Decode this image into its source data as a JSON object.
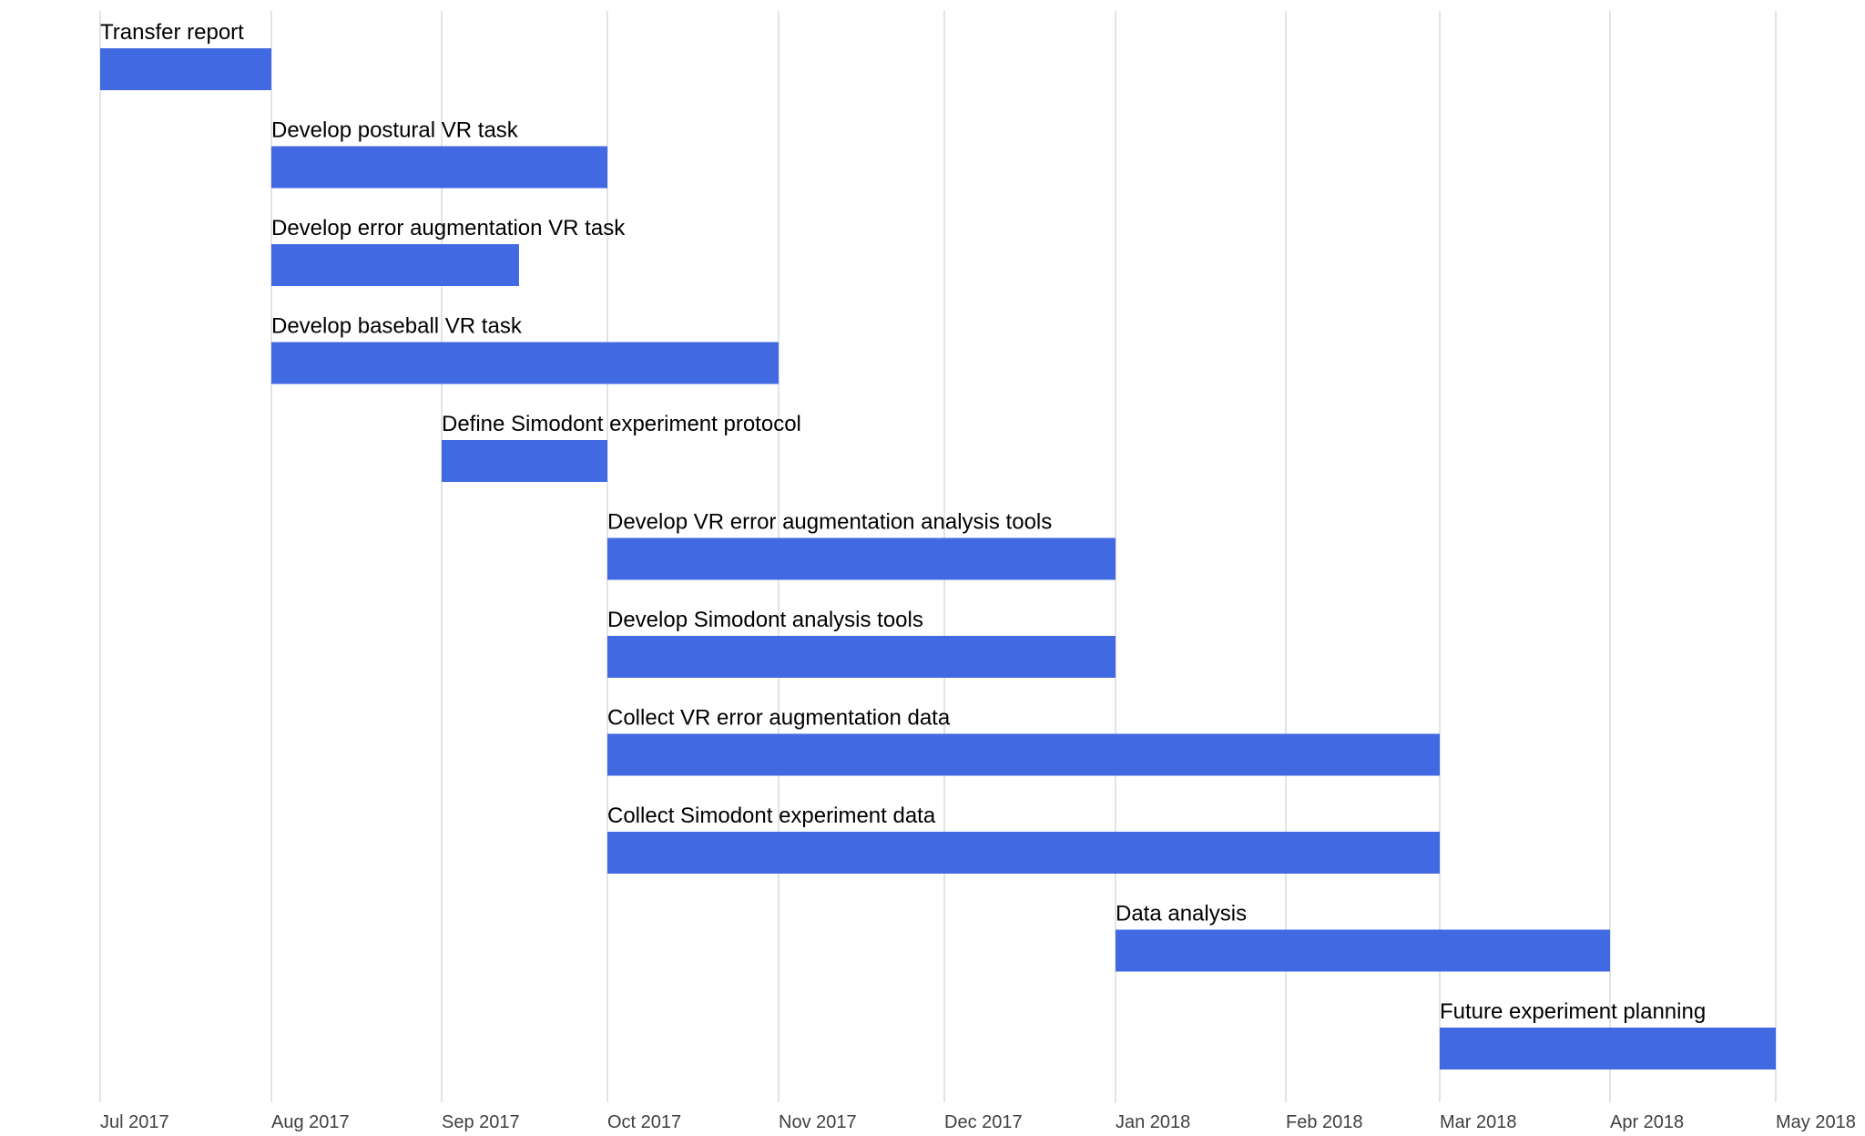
{
  "chart_data": {
    "type": "bar",
    "subtype": "gantt",
    "title": "",
    "xlabel": "",
    "ylabel": "",
    "x_axis": {
      "scale": "date",
      "range": [
        "2017-07-01",
        "2018-05-01"
      ],
      "ticks": [
        {
          "date": "2017-07-01",
          "label": "Jul 2017"
        },
        {
          "date": "2017-08-01",
          "label": "Aug 2017"
        },
        {
          "date": "2017-09-01",
          "label": "Sep 2017"
        },
        {
          "date": "2017-10-01",
          "label": "Oct 2017"
        },
        {
          "date": "2017-11-01",
          "label": "Nov 2017"
        },
        {
          "date": "2017-12-01",
          "label": "Dec 2017"
        },
        {
          "date": "2018-01-01",
          "label": "Jan 2018"
        },
        {
          "date": "2018-02-01",
          "label": "Feb 2018"
        },
        {
          "date": "2018-03-01",
          "label": "Mar 2018"
        },
        {
          "date": "2018-04-01",
          "label": "Apr 2018"
        },
        {
          "date": "2018-05-01",
          "label": "May 2018"
        }
      ]
    },
    "grid": true,
    "legend": "none",
    "bar_color": "#4169e1",
    "tasks": [
      {
        "name": "Transfer report",
        "start": "2017-07-01",
        "end": "2017-08-01"
      },
      {
        "name": "Develop postural VR task",
        "start": "2017-08-01",
        "end": "2017-10-01"
      },
      {
        "name": "Develop error augmentation VR task",
        "start": "2017-08-01",
        "end": "2017-09-15"
      },
      {
        "name": "Develop baseball VR task",
        "start": "2017-08-01",
        "end": "2017-11-01"
      },
      {
        "name": "Define Simodont experiment protocol",
        "start": "2017-09-01",
        "end": "2017-10-01"
      },
      {
        "name": "Develop VR error augmentation analysis tools",
        "start": "2017-10-01",
        "end": "2018-01-01"
      },
      {
        "name": "Develop Simodont analysis tools",
        "start": "2017-10-01",
        "end": "2018-01-01"
      },
      {
        "name": "Collect VR error augmentation data",
        "start": "2017-10-01",
        "end": "2018-03-01"
      },
      {
        "name": "Collect Simodont experiment data",
        "start": "2017-10-01",
        "end": "2018-03-01"
      },
      {
        "name": "Data analysis",
        "start": "2018-01-01",
        "end": "2018-04-01"
      },
      {
        "name": "Future experiment planning",
        "start": "2018-03-01",
        "end": "2018-05-01"
      }
    ]
  }
}
